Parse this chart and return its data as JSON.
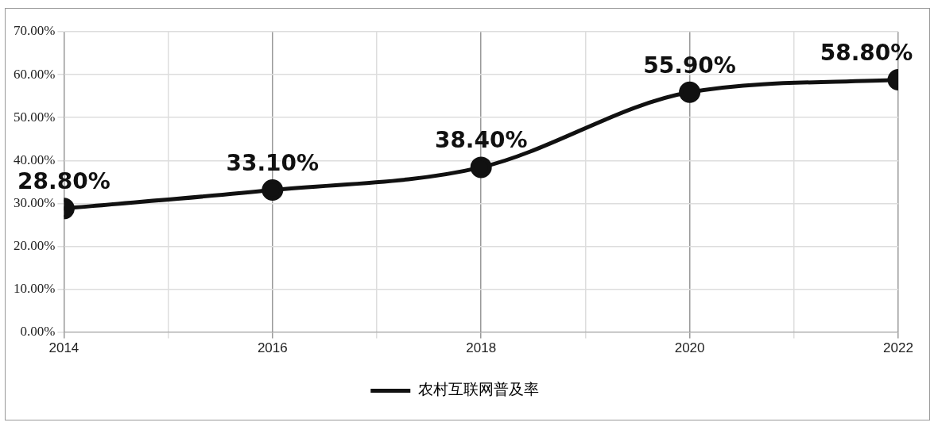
{
  "chart_data": {
    "type": "line",
    "x": [
      2014,
      2016,
      2018,
      2020,
      2022
    ],
    "series": [
      {
        "name": "农村互联网普及率",
        "color": "#111111",
        "values": [
          28.8,
          33.1,
          38.4,
          55.9,
          58.8
        ],
        "value_labels": [
          "28.80%",
          "33.10%",
          "38.40%",
          "55.90%",
          "58.80%"
        ]
      }
    ],
    "xlim": [
      2014,
      2022
    ],
    "xticks": [
      2014,
      {
        "value": 2015,
        "label": null
      },
      2016,
      {
        "value": 2017,
        "label": null
      },
      2018,
      {
        "value": 2019,
        "label": null
      },
      2020,
      {
        "value": 2021,
        "label": null
      },
      2022
    ],
    "ylim": [
      0,
      70
    ],
    "yticks": [
      {
        "value": 0,
        "label": "0.00%"
      },
      {
        "value": 10,
        "label": "10.00%"
      },
      {
        "value": 20,
        "label": "20.00%"
      },
      {
        "value": 30,
        "label": "30.00%"
      },
      {
        "value": 40,
        "label": "40.00%"
      },
      {
        "value": 50,
        "label": "50.00%"
      },
      {
        "value": 60,
        "label": "60.00%"
      },
      {
        "value": 70,
        "label": "70.00%"
      }
    ],
    "grid": true,
    "legend": "bottom",
    "marker": "circle",
    "line_style": "solid"
  }
}
